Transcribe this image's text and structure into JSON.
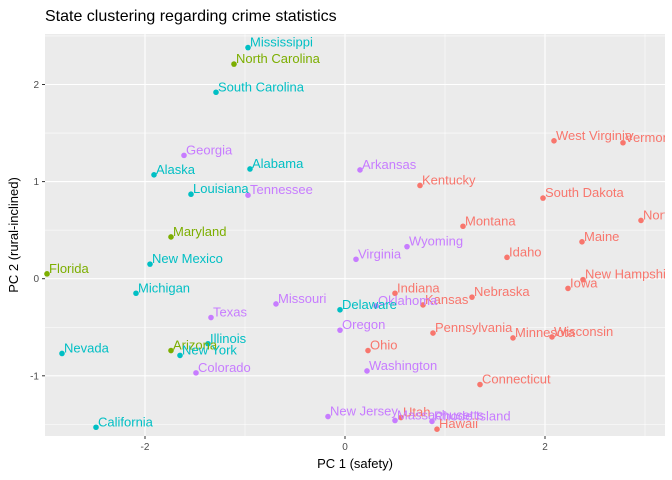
{
  "chart_data": {
    "type": "scatter",
    "title": "State clustering regarding crime statistics",
    "xlabel": "PC 1 (safety)",
    "ylabel": "PC 2 (rural-inclined)",
    "xlim": [
      -3.0,
      3.2
    ],
    "ylim": [
      -1.62,
      2.52
    ],
    "x_ticks": [
      -2,
      0,
      2
    ],
    "x_tick_labels": [
      "-2",
      "0",
      "2"
    ],
    "y_ticks": [
      -1,
      0,
      1,
      2
    ],
    "y_tick_labels": [
      "-1",
      "0",
      "1",
      "2"
    ],
    "grid": true,
    "legend": "none",
    "cluster_colors": {
      "1": "#f8766d",
      "2": "#7cae00",
      "3": "#00bfc4",
      "4": "#c77cff"
    },
    "points": [
      {
        "label": "Mississippi",
        "x": -0.97,
        "y": 2.38,
        "cluster": "3"
      },
      {
        "label": "North Carolina",
        "x": -1.11,
        "y": 2.21,
        "cluster": "2"
      },
      {
        "label": "South Carolina",
        "x": -1.29,
        "y": 1.92,
        "cluster": "3"
      },
      {
        "label": "Georgia",
        "x": -1.61,
        "y": 1.27,
        "cluster": "4"
      },
      {
        "label": "Alaska",
        "x": -1.91,
        "y": 1.07,
        "cluster": "3"
      },
      {
        "label": "Alabama",
        "x": -0.95,
        "y": 1.13,
        "cluster": "3"
      },
      {
        "label": "Louisiana",
        "x": -1.54,
        "y": 0.87,
        "cluster": "3"
      },
      {
        "label": "Tennessee",
        "x": -0.97,
        "y": 0.86,
        "cluster": "4"
      },
      {
        "label": "Arkansas",
        "x": 0.15,
        "y": 1.12,
        "cluster": "4"
      },
      {
        "label": "Kentucky",
        "x": 0.75,
        "y": 0.96,
        "cluster": "1"
      },
      {
        "label": "West Virginia",
        "x": 2.09,
        "y": 1.42,
        "cluster": "1"
      },
      {
        "label": "Vermont",
        "x": 2.78,
        "y": 1.4,
        "cluster": "1"
      },
      {
        "label": "South Dakota",
        "x": 1.98,
        "y": 0.83,
        "cluster": "1"
      },
      {
        "label": "North Dakota",
        "x": 2.96,
        "y": 0.6,
        "cluster": "1"
      },
      {
        "label": "Montana",
        "x": 1.18,
        "y": 0.54,
        "cluster": "1"
      },
      {
        "label": "Maryland",
        "x": -1.74,
        "y": 0.43,
        "cluster": "2"
      },
      {
        "label": "Maine",
        "x": 2.37,
        "y": 0.38,
        "cluster": "1"
      },
      {
        "label": "Wyoming",
        "x": 0.62,
        "y": 0.33,
        "cluster": "4"
      },
      {
        "label": "Idaho",
        "x": 1.62,
        "y": 0.22,
        "cluster": "1"
      },
      {
        "label": "Virginia",
        "x": 0.11,
        "y": 0.2,
        "cluster": "4"
      },
      {
        "label": "New Mexico",
        "x": -1.95,
        "y": 0.15,
        "cluster": "3"
      },
      {
        "label": "Florida",
        "x": -2.98,
        "y": 0.05,
        "cluster": "2"
      },
      {
        "label": "New Hampshire",
        "x": 2.38,
        "y": -0.01,
        "cluster": "1"
      },
      {
        "label": "Iowa",
        "x": 2.23,
        "y": -0.1,
        "cluster": "1"
      },
      {
        "label": "Indiana",
        "x": 0.5,
        "y": -0.15,
        "cluster": "1"
      },
      {
        "label": "Michigan",
        "x": -2.09,
        "y": -0.15,
        "cluster": "3"
      },
      {
        "label": "Nebraska",
        "x": 1.27,
        "y": -0.19,
        "cluster": "1"
      },
      {
        "label": "Missouri",
        "x": -0.69,
        "y": -0.26,
        "cluster": "4"
      },
      {
        "label": "Kansas",
        "x": 0.78,
        "y": -0.27,
        "cluster": "1"
      },
      {
        "label": "Oklahoma",
        "x": 0.31,
        "y": -0.28,
        "cluster": "4"
      },
      {
        "label": "Delaware",
        "x": -0.05,
        "y": -0.32,
        "cluster": "3"
      },
      {
        "label": "Texas",
        "x": -1.34,
        "y": -0.4,
        "cluster": "4"
      },
      {
        "label": "Oregon",
        "x": -0.05,
        "y": -0.53,
        "cluster": "4"
      },
      {
        "label": "Pennsylvania",
        "x": 0.88,
        "y": -0.56,
        "cluster": "1"
      },
      {
        "label": "Wisconsin",
        "x": 2.07,
        "y": -0.6,
        "cluster": "1"
      },
      {
        "label": "Minnesota",
        "x": 1.68,
        "y": -0.61,
        "cluster": "1"
      },
      {
        "label": "Illinois",
        "x": -1.37,
        "y": -0.67,
        "cluster": "3"
      },
      {
        "label": "Ohio",
        "x": 0.23,
        "y": -0.74,
        "cluster": "1"
      },
      {
        "label": "Arizona",
        "x": -1.74,
        "y": -0.74,
        "cluster": "2"
      },
      {
        "label": "Nevada",
        "x": -2.83,
        "y": -0.77,
        "cluster": "3"
      },
      {
        "label": "New York",
        "x": -1.65,
        "y": -0.79,
        "cluster": "3"
      },
      {
        "label": "Washington",
        "x": 0.22,
        "y": -0.95,
        "cluster": "4"
      },
      {
        "label": "Colorado",
        "x": -1.49,
        "y": -0.97,
        "cluster": "4"
      },
      {
        "label": "Connecticut",
        "x": 1.35,
        "y": -1.09,
        "cluster": "1"
      },
      {
        "label": "New Jersey",
        "x": -0.17,
        "y": -1.42,
        "cluster": "4"
      },
      {
        "label": "Utah",
        "x": 0.56,
        "y": -1.43,
        "cluster": "1"
      },
      {
        "label": "Massachusetts",
        "x": 0.5,
        "y": -1.46,
        "cluster": "4"
      },
      {
        "label": "Rhode Island",
        "x": 0.87,
        "y": -1.47,
        "cluster": "4"
      },
      {
        "label": "Hawaii",
        "x": 0.92,
        "y": -1.55,
        "cluster": "1"
      },
      {
        "label": "California",
        "x": -2.49,
        "y": -1.53,
        "cluster": "3"
      }
    ]
  }
}
